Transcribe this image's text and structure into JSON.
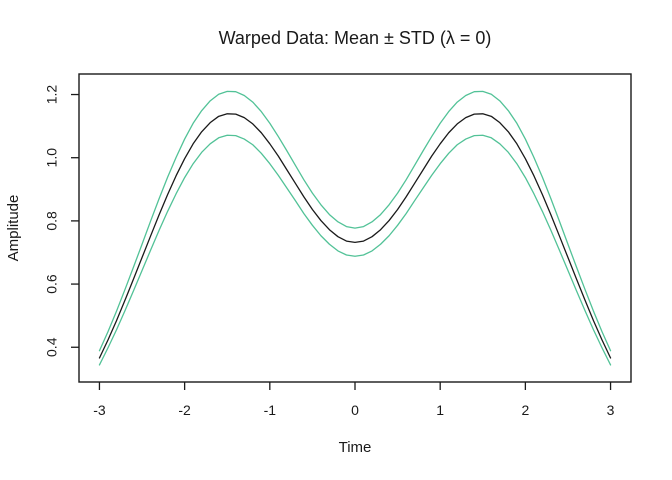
{
  "title": "Warped Data: Mean ± STD (λ = 0)",
  "chart_data": {
    "type": "line",
    "title": "Warped Data: Mean ± STD (λ = 0)",
    "xlabel": "Time",
    "ylabel": "Amplitude",
    "xlim": [
      -3.24,
      3.24
    ],
    "ylim": [
      0.29,
      1.265
    ],
    "x_ticks": [
      -3,
      -2,
      -1,
      0,
      1,
      2,
      3
    ],
    "x_tick_labels": [
      "-3",
      "-2",
      "-1",
      "0",
      "1",
      "2",
      "3"
    ],
    "y_ticks": [
      0.4,
      0.6,
      0.8,
      1.0,
      1.2
    ],
    "y_tick_labels": [
      "0.4",
      "0.6",
      "0.8",
      "1.0",
      "1.2"
    ],
    "grid": false,
    "legend": "none",
    "colors": {
      "mean_line": "#1a1a1a",
      "std_lines": "#52c297",
      "frame": "#1a1a1a"
    },
    "x": [
      -3,
      -2.9,
      -2.8,
      -2.7,
      -2.6,
      -2.5,
      -2.4,
      -2.3,
      -2.2,
      -2.1,
      -2,
      -1.9,
      -1.8,
      -1.7,
      -1.6,
      -1.5,
      -1.4,
      -1.3,
      -1.2,
      -1.1,
      -1,
      -0.9,
      -0.8,
      -0.7,
      -0.6,
      -0.5,
      -0.4,
      -0.3,
      -0.2,
      -0.1,
      0,
      0.1,
      0.2,
      0.3,
      0.4,
      0.5,
      0.6,
      0.7,
      0.8,
      0.9,
      1,
      1.1,
      1.2,
      1.3,
      1.4,
      1.5,
      1.6,
      1.7,
      1.8,
      1.9,
      2,
      2.1,
      2.2,
      2.3,
      2.4,
      2.5,
      2.6,
      2.7,
      2.8,
      2.9,
      3
    ],
    "series": [
      {
        "name": "mean",
        "color": "#1a1a1a",
        "values": [
          0.366,
          0.423,
          0.484,
          0.549,
          0.616,
          0.684,
          0.752,
          0.819,
          0.883,
          0.943,
          0.997,
          1.044,
          1.082,
          1.111,
          1.131,
          1.139,
          1.138,
          1.127,
          1.107,
          1.079,
          1.044,
          1.005,
          0.962,
          0.919,
          0.876,
          0.836,
          0.801,
          0.772,
          0.75,
          0.736,
          0.732,
          0.736,
          0.75,
          0.772,
          0.801,
          0.836,
          0.876,
          0.919,
          0.962,
          1.005,
          1.044,
          1.079,
          1.107,
          1.127,
          1.138,
          1.139,
          1.131,
          1.111,
          1.082,
          1.044,
          0.997,
          0.943,
          0.883,
          0.819,
          0.752,
          0.684,
          0.616,
          0.549,
          0.484,
          0.423,
          0.366
        ]
      },
      {
        "name": "mean-plus-std",
        "color": "#52c297",
        "values": [
          0.389,
          0.449,
          0.514,
          0.583,
          0.654,
          0.726,
          0.799,
          0.87,
          0.938,
          1.001,
          1.059,
          1.109,
          1.149,
          1.18,
          1.201,
          1.21,
          1.209,
          1.197,
          1.176,
          1.146,
          1.109,
          1.067,
          1.022,
          0.976,
          0.93,
          0.888,
          0.851,
          0.82,
          0.797,
          0.782,
          0.777,
          0.782,
          0.797,
          0.82,
          0.851,
          0.888,
          0.93,
          0.976,
          1.022,
          1.067,
          1.109,
          1.146,
          1.176,
          1.197,
          1.209,
          1.21,
          1.201,
          1.18,
          1.149,
          1.109,
          1.059,
          1.001,
          0.938,
          0.87,
          0.799,
          0.726,
          0.654,
          0.583,
          0.514,
          0.449,
          0.389
        ]
      },
      {
        "name": "mean-minus-std",
        "color": "#52c297",
        "values": [
          0.344,
          0.398,
          0.455,
          0.516,
          0.579,
          0.643,
          0.707,
          0.77,
          0.83,
          0.886,
          0.937,
          0.981,
          1.017,
          1.044,
          1.063,
          1.071,
          1.07,
          1.059,
          1.041,
          1.014,
          0.981,
          0.944,
          0.904,
          0.864,
          0.823,
          0.786,
          0.753,
          0.726,
          0.705,
          0.692,
          0.688,
          0.692,
          0.705,
          0.726,
          0.753,
          0.786,
          0.823,
          0.864,
          0.904,
          0.944,
          0.981,
          1.014,
          1.041,
          1.059,
          1.07,
          1.071,
          1.063,
          1.044,
          1.017,
          0.981,
          0.937,
          0.886,
          0.83,
          0.77,
          0.707,
          0.643,
          0.579,
          0.516,
          0.455,
          0.398,
          0.344
        ]
      }
    ]
  }
}
